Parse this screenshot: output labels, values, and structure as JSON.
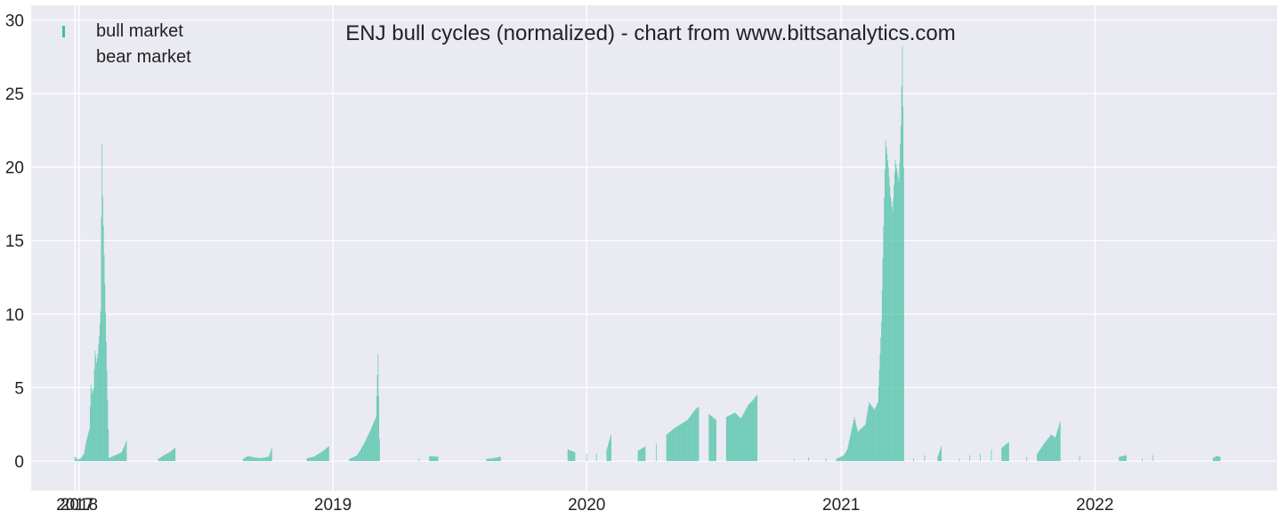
{
  "chart_data": {
    "type": "bar",
    "title": "ENJ bull cycles (normalized)  - chart from www.bittsanalytics.com",
    "xlabel": "",
    "ylabel": "",
    "x_range": [
      "2017-10-24",
      "2022-09-20"
    ],
    "ylim": [
      -2,
      31
    ],
    "yticks": [
      0,
      5,
      10,
      15,
      20,
      25,
      30
    ],
    "xticks": [
      {
        "date": "2017-12-26",
        "label": "2017"
      },
      {
        "date": "2018-01-01",
        "label": "2018"
      },
      {
        "date": "2019-01-01",
        "label": "2019"
      },
      {
        "date": "2020-01-01",
        "label": "2020"
      },
      {
        "date": "2021-01-01",
        "label": "2021"
      },
      {
        "date": "2022-01-01",
        "label": "2022"
      }
    ],
    "grid": true,
    "legend_position": "top-left",
    "series": [
      {
        "name": "bull market",
        "color": "#3fbfa0"
      },
      {
        "name": "bear market",
        "color": "#e0e0ec"
      }
    ],
    "bull_points": [
      [
        "2017-12-26",
        0.3
      ],
      [
        "2017-12-30",
        0.1
      ],
      [
        "2018-01-04",
        0.2
      ],
      [
        "2018-01-08",
        0.5
      ],
      [
        "2018-01-12",
        1.5
      ],
      [
        "2018-01-16",
        2.2
      ],
      [
        "2018-01-18",
        5.2
      ],
      [
        "2018-01-20",
        4.6
      ],
      [
        "2018-01-22",
        5.0
      ],
      [
        "2018-01-24",
        7.5
      ],
      [
        "2018-01-26",
        6.7
      ],
      [
        "2018-01-28",
        7.3
      ],
      [
        "2018-01-30",
        8.5
      ],
      [
        "2018-02-01",
        10.2
      ],
      [
        "2018-02-02",
        16.6
      ],
      [
        "2018-02-03",
        21.6
      ],
      [
        "2018-02-04",
        18.0
      ],
      [
        "2018-02-13",
        0.2
      ],
      [
        "2018-02-17",
        0.3
      ],
      [
        "2018-02-27",
        0.5
      ],
      [
        "2018-03-03",
        0.6
      ],
      [
        "2018-03-07",
        1.0
      ],
      [
        "2018-03-10",
        1.4
      ],
      [
        "2018-04-25",
        0.15
      ],
      [
        "2018-05-03",
        0.4
      ],
      [
        "2018-05-11",
        0.6
      ],
      [
        "2018-05-19",
        0.9
      ],
      [
        "2018-08-25",
        0.15
      ],
      [
        "2018-09-01",
        0.35
      ],
      [
        "2018-09-10",
        0.25
      ],
      [
        "2018-09-20",
        0.2
      ],
      [
        "2018-10-01",
        0.3
      ],
      [
        "2018-10-05",
        0.9
      ],
      [
        "2018-11-25",
        0.2
      ],
      [
        "2018-12-05",
        0.3
      ],
      [
        "2018-12-15",
        0.6
      ],
      [
        "2018-12-26",
        1.0
      ],
      [
        "2019-01-25",
        0.15
      ],
      [
        "2019-02-05",
        0.4
      ],
      [
        "2019-02-15",
        1.2
      ],
      [
        "2019-02-25",
        2.2
      ],
      [
        "2019-03-04",
        3.0
      ],
      [
        "2019-03-07",
        7.3
      ],
      [
        "2019-03-09",
        1.5
      ],
      [
        "2019-05-05",
        0.2
      ],
      [
        "2019-05-20",
        0.35
      ],
      [
        "2019-06-01",
        0.3
      ],
      [
        "2019-08-10",
        0.15
      ],
      [
        "2019-08-20",
        0.2
      ],
      [
        "2019-08-30",
        0.3
      ],
      [
        "2019-12-05",
        0.8
      ],
      [
        "2019-12-15",
        0.6
      ],
      [
        "2020-01-01",
        0.5
      ],
      [
        "2020-01-15",
        0.5
      ],
      [
        "2020-01-30",
        0.8
      ],
      [
        "2020-02-05",
        1.8
      ],
      [
        "2020-03-15",
        0.7
      ],
      [
        "2020-03-25",
        1.0
      ],
      [
        "2020-04-10",
        1.2
      ],
      [
        "2020-04-25",
        1.8
      ],
      [
        "2020-05-05",
        2.2
      ],
      [
        "2020-05-15",
        2.5
      ],
      [
        "2020-05-25",
        2.8
      ],
      [
        "2020-06-05",
        3.5
      ],
      [
        "2020-06-10",
        3.7
      ],
      [
        "2020-06-25",
        3.2
      ],
      [
        "2020-07-05",
        2.8
      ],
      [
        "2020-07-20",
        3.0
      ],
      [
        "2020-08-01",
        3.3
      ],
      [
        "2020-08-10",
        2.9
      ],
      [
        "2020-08-20",
        3.8
      ],
      [
        "2020-08-28",
        4.2
      ],
      [
        "2020-09-02",
        4.5
      ],
      [
        "2020-10-25",
        0.15
      ],
      [
        "2020-11-15",
        0.25
      ],
      [
        "2020-12-10",
        0.2
      ],
      [
        "2020-12-25",
        0.15
      ],
      [
        "2021-01-05",
        0.4
      ],
      [
        "2021-01-10",
        0.8
      ],
      [
        "2021-01-20",
        3.0
      ],
      [
        "2021-01-25",
        2.0
      ],
      [
        "2021-02-05",
        2.5
      ],
      [
        "2021-02-10",
        4.0
      ],
      [
        "2021-02-18",
        3.5
      ],
      [
        "2021-02-23",
        4.0
      ],
      [
        "2021-02-28",
        9.5
      ],
      [
        "2021-03-03",
        16.0
      ],
      [
        "2021-03-06",
        21.8
      ],
      [
        "2021-03-10",
        20.0
      ],
      [
        "2021-03-13",
        18.0
      ],
      [
        "2021-03-16",
        17.0
      ],
      [
        "2021-03-20",
        20.5
      ],
      [
        "2021-03-25",
        19.0
      ],
      [
        "2021-03-28",
        22.8
      ],
      [
        "2021-03-30",
        28.2
      ],
      [
        "2021-04-01",
        20.0
      ],
      [
        "2021-04-15",
        0.2
      ],
      [
        "2021-05-01",
        0.4
      ],
      [
        "2021-05-20",
        0.3
      ],
      [
        "2021-05-25",
        1.0
      ],
      [
        "2021-06-20",
        0.2
      ],
      [
        "2021-07-05",
        0.4
      ],
      [
        "2021-07-20",
        0.5
      ],
      [
        "2021-08-05",
        0.8
      ],
      [
        "2021-08-20",
        0.9
      ],
      [
        "2021-08-30",
        1.3
      ],
      [
        "2021-09-25",
        0.3
      ],
      [
        "2021-10-10",
        0.5
      ],
      [
        "2021-10-20",
        1.2
      ],
      [
        "2021-10-30",
        1.8
      ],
      [
        "2021-11-05",
        1.6
      ],
      [
        "2021-11-12",
        2.7
      ],
      [
        "2021-12-10",
        0.35
      ],
      [
        "2022-02-05",
        0.3
      ],
      [
        "2022-02-15",
        0.4
      ],
      [
        "2022-03-10",
        0.2
      ],
      [
        "2022-03-25",
        0.4
      ],
      [
        "2022-06-20",
        0.2
      ],
      [
        "2022-06-25",
        0.35
      ],
      [
        "2022-06-30",
        0.3
      ]
    ]
  }
}
